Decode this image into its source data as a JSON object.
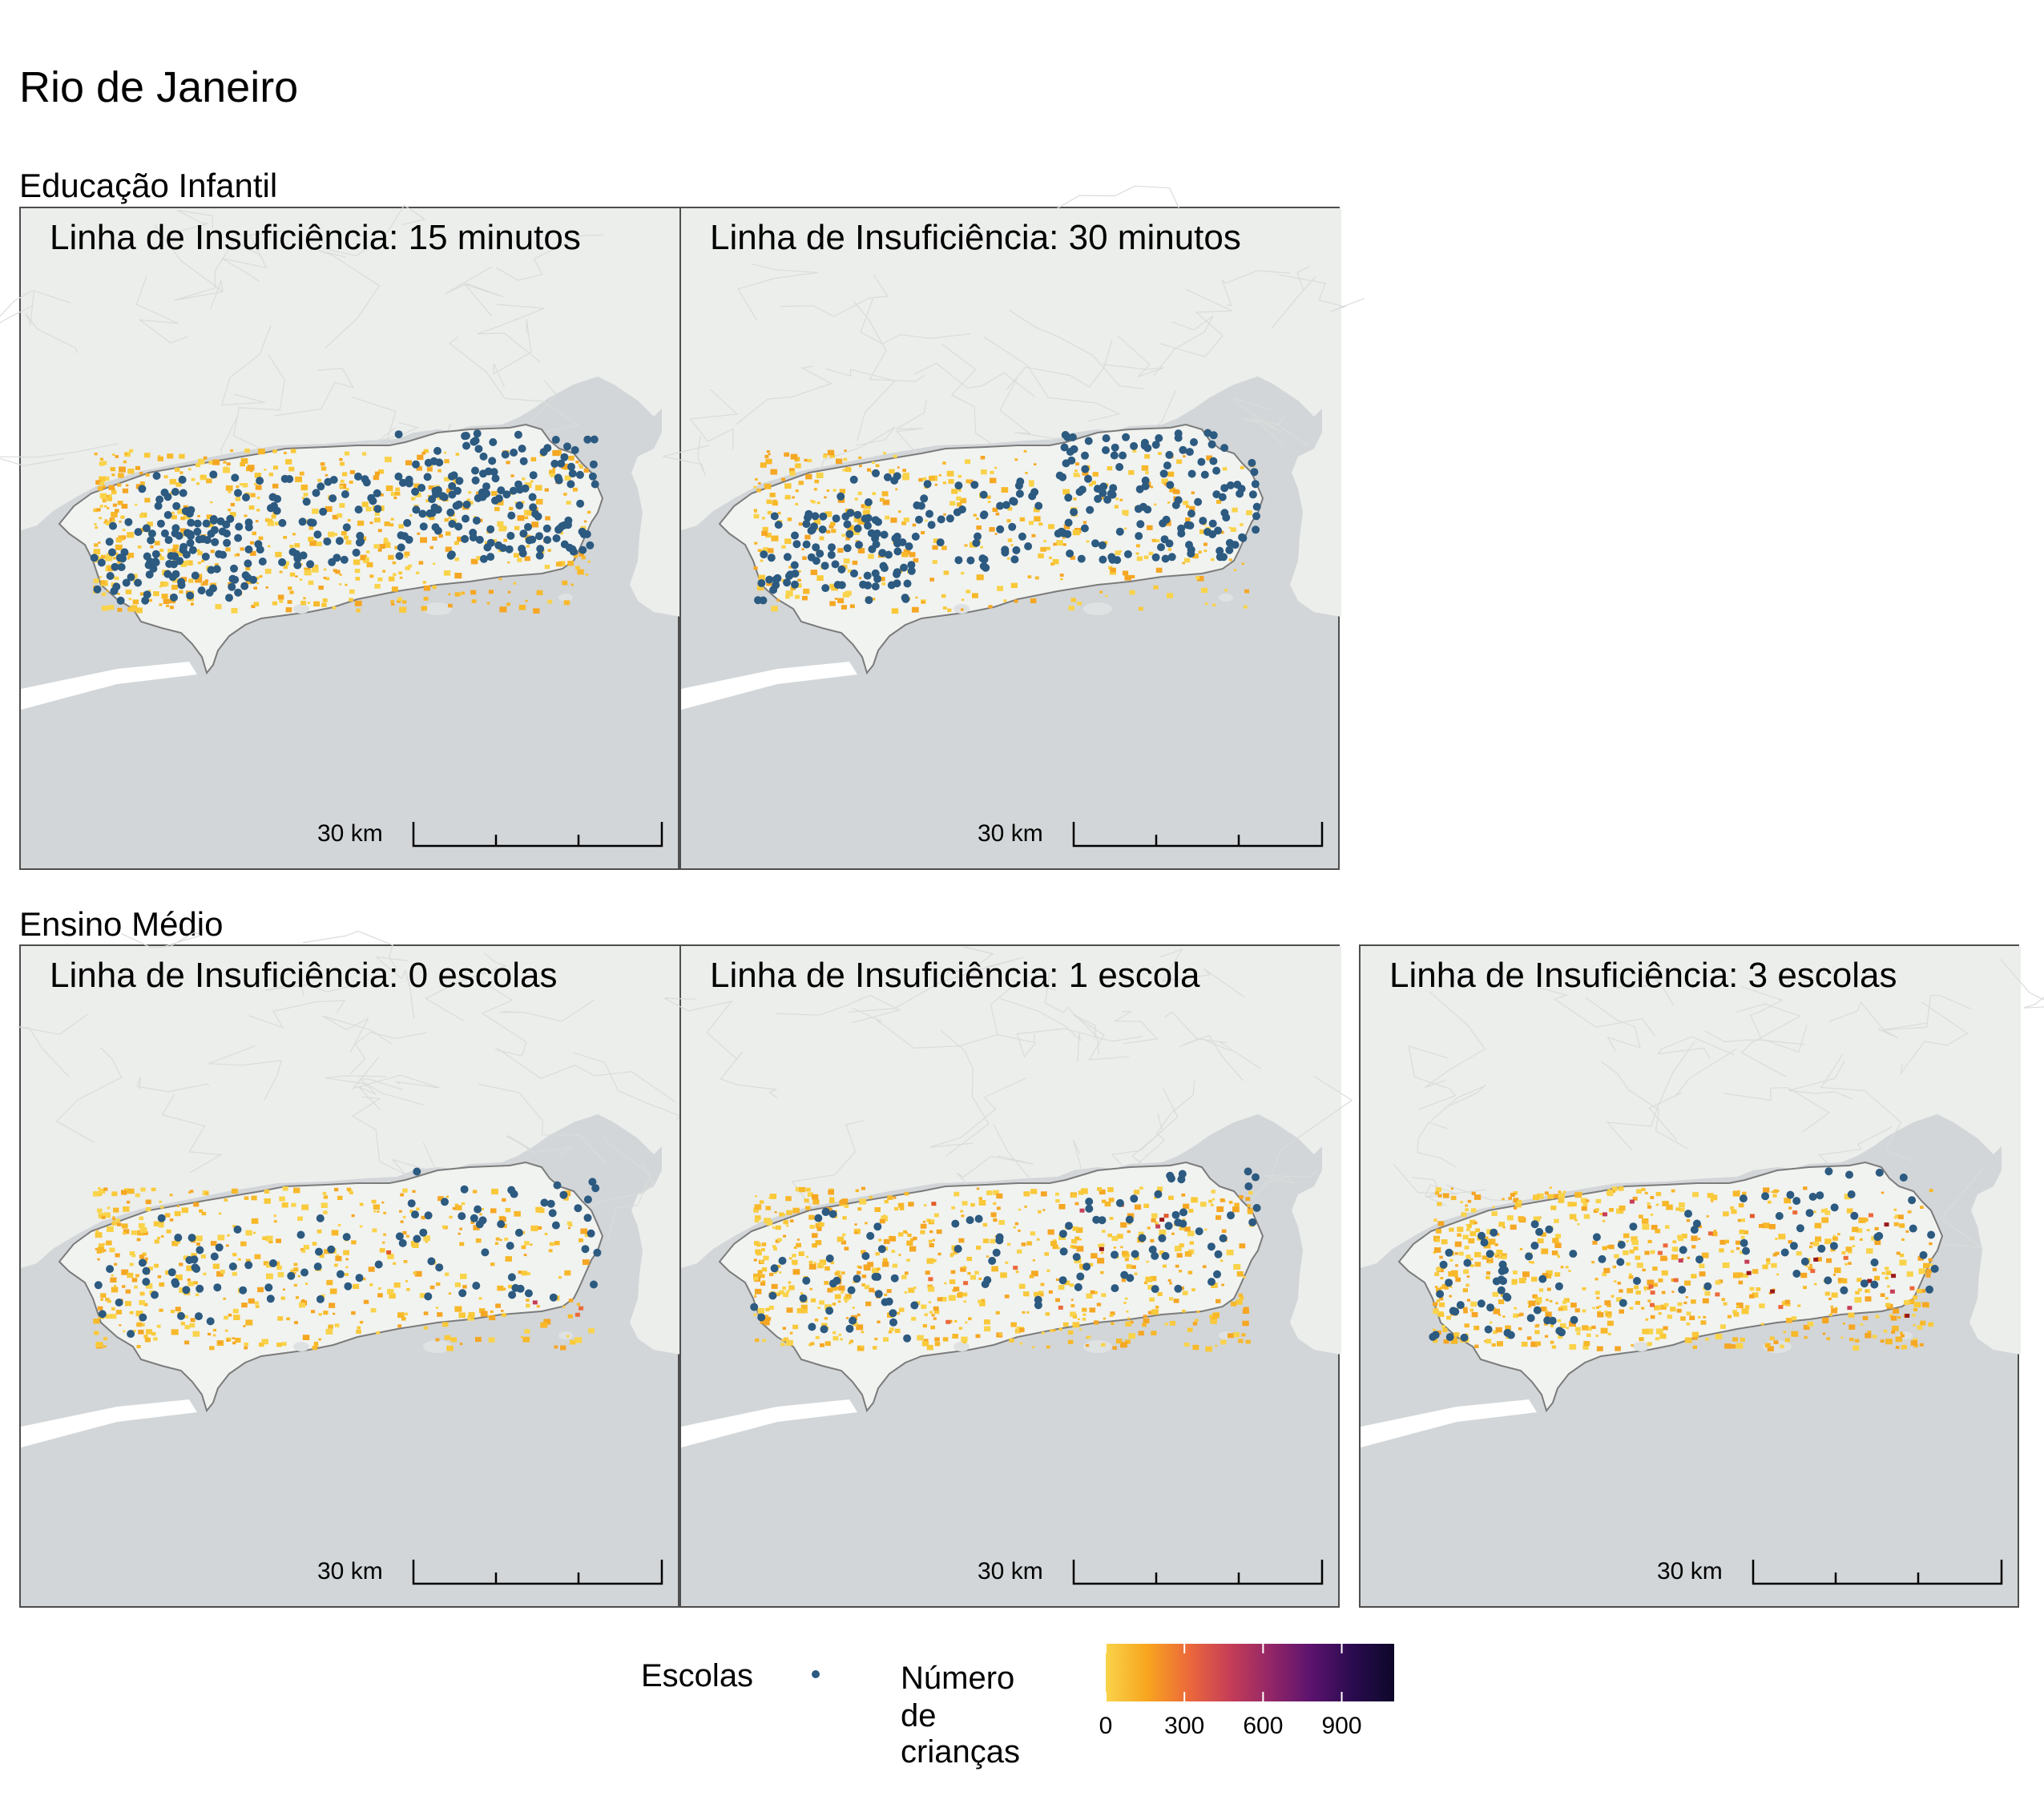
{
  "title": "Rio de Janeiro",
  "sections": [
    {
      "title": "Educação Infantil",
      "panels": [
        {
          "label": "Linha de Insuficiência: 15 minutos",
          "scale": "30 km",
          "school_density": 1.0,
          "orange_density": 0.9,
          "hotspot_level": 0
        },
        {
          "label": "Linha de Insuficiência: 30 minutos",
          "scale": "30 km",
          "school_density": 0.85,
          "orange_density": 0.6,
          "hotspot_level": 0
        }
      ]
    },
    {
      "title": "Ensino Médio",
      "panels": [
        {
          "label": "Linha de Insuficiência: 0 escolas",
          "scale": "30 km",
          "school_density": 0.3,
          "orange_density": 0.7,
          "hotspot_level": 0.1
        },
        {
          "label": "Linha de Insuficiência: 1 escola",
          "scale": "30 km",
          "school_density": 0.3,
          "orange_density": 0.95,
          "hotspot_level": 0.3
        },
        {
          "label": "Linha de Insuficiência: 3 escolas",
          "scale": "30 km",
          "school_density": 0.3,
          "orange_density": 1.0,
          "hotspot_level": 0.7
        }
      ]
    }
  ],
  "legend": {
    "schools_label": "Escolas",
    "count_label_line1": "Número",
    "count_label_line2": "de crianças",
    "ticks": [
      "0",
      "300",
      "600",
      "900"
    ],
    "tick_values": [
      0,
      300,
      600,
      900
    ],
    "max_value": 1100,
    "gradient": [
      "#f9d34a",
      "#f8a51f",
      "#ec6a3a",
      "#c63e57",
      "#932667",
      "#5b136e",
      "#2a0b4f",
      "#0d0829"
    ]
  },
  "colors": {
    "school": "#2c5a80",
    "land_inside": "#f1f3f1",
    "land_outside": "#eceeec",
    "water": "#d2d6d8",
    "boundary": "#7b7b7b"
  }
}
